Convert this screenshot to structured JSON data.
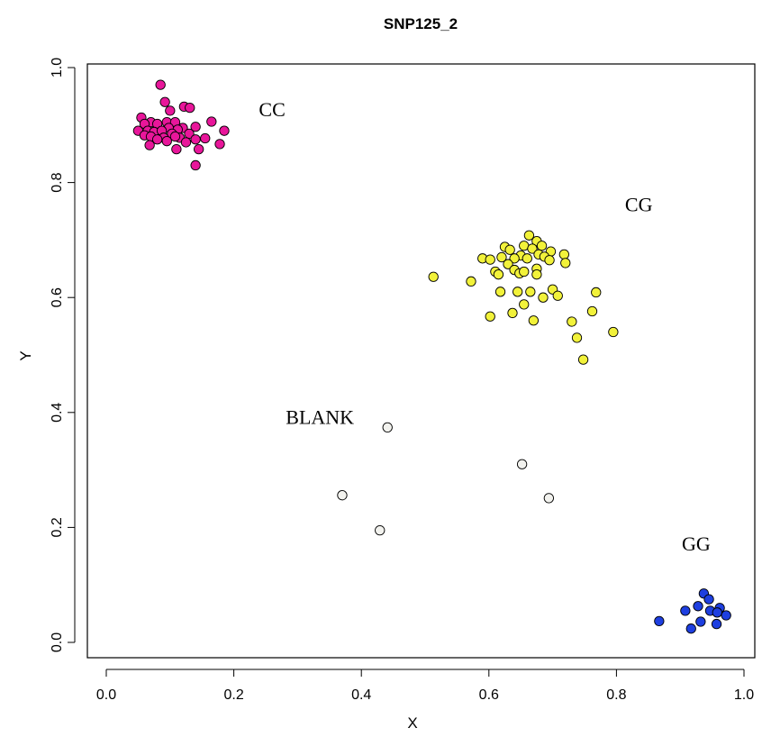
{
  "chart_data": {
    "type": "scatter",
    "title": "SNP125_2",
    "xlabel": "X",
    "ylabel": "Y",
    "xlim": [
      0.0,
      1.0
    ],
    "ylim": [
      0.0,
      1.0
    ],
    "xticks": [
      "0.0",
      "0.2",
      "0.4",
      "0.6",
      "0.8",
      "1.0"
    ],
    "yticks": [
      "0.0",
      "0.2",
      "0.4",
      "0.6",
      "0.8",
      "1.0"
    ],
    "grid": false,
    "series": [
      {
        "name": "CC",
        "color": "#e8169a",
        "label_at": [
          0.26,
          0.915
        ],
        "points": [
          [
            0.085,
            0.97
          ],
          [
            0.122,
            0.932
          ],
          [
            0.131,
            0.93
          ],
          [
            0.092,
            0.94
          ],
          [
            0.1,
            0.925
          ],
          [
            0.055,
            0.913
          ],
          [
            0.165,
            0.906
          ],
          [
            0.07,
            0.905
          ],
          [
            0.06,
            0.902
          ],
          [
            0.08,
            0.902
          ],
          [
            0.095,
            0.905
          ],
          [
            0.108,
            0.905
          ],
          [
            0.14,
            0.897
          ],
          [
            0.12,
            0.895
          ],
          [
            0.098,
            0.895
          ],
          [
            0.112,
            0.892
          ],
          [
            0.05,
            0.89
          ],
          [
            0.065,
            0.89
          ],
          [
            0.075,
            0.888
          ],
          [
            0.087,
            0.89
          ],
          [
            0.185,
            0.89
          ],
          [
            0.13,
            0.885
          ],
          [
            0.103,
            0.885
          ],
          [
            0.06,
            0.882
          ],
          [
            0.07,
            0.88
          ],
          [
            0.09,
            0.878
          ],
          [
            0.115,
            0.878
          ],
          [
            0.08,
            0.875
          ],
          [
            0.095,
            0.872
          ],
          [
            0.155,
            0.877
          ],
          [
            0.14,
            0.875
          ],
          [
            0.125,
            0.87
          ],
          [
            0.108,
            0.88
          ],
          [
            0.178,
            0.867
          ],
          [
            0.068,
            0.865
          ],
          [
            0.145,
            0.858
          ],
          [
            0.11,
            0.858
          ],
          [
            0.14,
            0.83
          ]
        ]
      },
      {
        "name": "CG",
        "color": "#f2f23a",
        "label_at": [
          0.835,
          0.75
        ],
        "points": [
          [
            0.663,
            0.708
          ],
          [
            0.675,
            0.698
          ],
          [
            0.655,
            0.69
          ],
          [
            0.683,
            0.69
          ],
          [
            0.625,
            0.688
          ],
          [
            0.633,
            0.683
          ],
          [
            0.668,
            0.685
          ],
          [
            0.697,
            0.68
          ],
          [
            0.678,
            0.675
          ],
          [
            0.718,
            0.675
          ],
          [
            0.65,
            0.673
          ],
          [
            0.687,
            0.671
          ],
          [
            0.64,
            0.668
          ],
          [
            0.62,
            0.67
          ],
          [
            0.59,
            0.668
          ],
          [
            0.602,
            0.666
          ],
          [
            0.66,
            0.668
          ],
          [
            0.695,
            0.665
          ],
          [
            0.72,
            0.66
          ],
          [
            0.63,
            0.658
          ],
          [
            0.675,
            0.65
          ],
          [
            0.64,
            0.648
          ],
          [
            0.61,
            0.645
          ],
          [
            0.648,
            0.642
          ],
          [
            0.655,
            0.645
          ],
          [
            0.615,
            0.64
          ],
          [
            0.675,
            0.64
          ],
          [
            0.513,
            0.636
          ],
          [
            0.572,
            0.628
          ],
          [
            0.7,
            0.614
          ],
          [
            0.618,
            0.61
          ],
          [
            0.645,
            0.61
          ],
          [
            0.665,
            0.61
          ],
          [
            0.768,
            0.609
          ],
          [
            0.708,
            0.603
          ],
          [
            0.685,
            0.6
          ],
          [
            0.655,
            0.588
          ],
          [
            0.762,
            0.576
          ],
          [
            0.637,
            0.573
          ],
          [
            0.602,
            0.567
          ],
          [
            0.67,
            0.56
          ],
          [
            0.73,
            0.558
          ],
          [
            0.795,
            0.54
          ],
          [
            0.738,
            0.53
          ],
          [
            0.748,
            0.492
          ]
        ]
      },
      {
        "name": "BLANK",
        "color": "#f2f2ee",
        "label_at": [
          0.335,
          0.38
        ],
        "points": [
          [
            0.441,
            0.374
          ],
          [
            0.652,
            0.31
          ],
          [
            0.37,
            0.256
          ],
          [
            0.694,
            0.251
          ],
          [
            0.429,
            0.195
          ]
        ]
      },
      {
        "name": "GG",
        "color": "#1e3fe0",
        "label_at": [
          0.925,
          0.16
        ],
        "points": [
          [
            0.937,
            0.085
          ],
          [
            0.945,
            0.075
          ],
          [
            0.928,
            0.063
          ],
          [
            0.962,
            0.06
          ],
          [
            0.908,
            0.055
          ],
          [
            0.947,
            0.055
          ],
          [
            0.958,
            0.052
          ],
          [
            0.972,
            0.047
          ],
          [
            0.867,
            0.037
          ],
          [
            0.932,
            0.036
          ],
          [
            0.957,
            0.032
          ],
          [
            0.917,
            0.024
          ]
        ]
      }
    ]
  }
}
